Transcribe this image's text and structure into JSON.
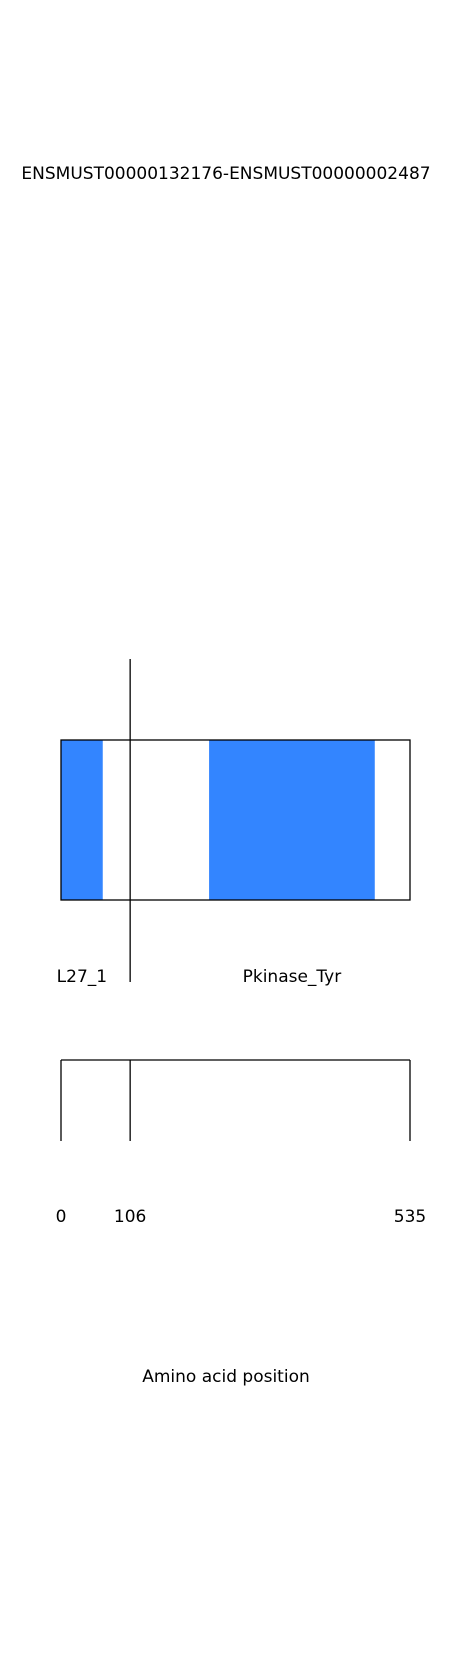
{
  "title": "ENSMUST00000132176-ENSMUST00000002487",
  "xlabel": "Amino acid position",
  "colors": {
    "domain_fill": "#3385ff",
    "outline": "#000000",
    "background": "#ffffff"
  },
  "chart_data": {
    "type": "bar",
    "protein_length": 535,
    "breakpoint": 106,
    "domains": [
      {
        "label": "L27_1",
        "start": 0,
        "end": 64
      },
      {
        "label": "Pkinase_Tyr",
        "start": 227,
        "end": 481
      }
    ],
    "ticks": [
      {
        "value": 0,
        "label": "0"
      },
      {
        "value": 106,
        "label": "106"
      },
      {
        "value": 535,
        "label": "535"
      }
    ]
  }
}
